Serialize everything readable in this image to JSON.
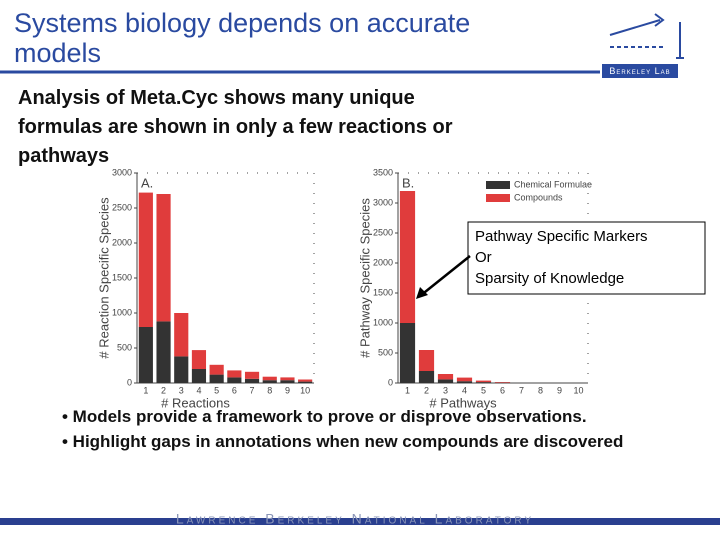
{
  "slide": {
    "title_lines": [
      "Systems biology depends on accurate",
      "models"
    ],
    "logo": "Berkeley Lab",
    "subtitle_lines": [
      "Analysis of Meta.Cyc shows many unique",
      "formulas are shown in only a few reactions or",
      "pathways"
    ],
    "callout_lines": [
      "Pathway Specific Markers",
      "Or",
      "Sparsity of Knowledge"
    ],
    "bullets": [
      "• Models provide a framework to prove or disprove observations.",
      "• Highlight gaps in annotations when new compounds are discovered"
    ],
    "footer": "Lawrence Berkeley National Laboratory"
  },
  "chart_data": [
    {
      "type": "stacked-bar",
      "title": "A.",
      "x_label": "# Reactions",
      "y_label": "# Reaction Specific Species",
      "categories": [
        "1",
        "2",
        "3",
        "4",
        "5",
        "6",
        "7",
        "8",
        "9",
        "10"
      ],
      "series": [
        {
          "color": "#333333",
          "values": [
            800,
            880,
            380,
            200,
            120,
            80,
            60,
            40,
            40,
            20
          ]
        },
        {
          "color": "#e03c3c",
          "values": [
            1920,
            1820,
            620,
            270,
            140,
            100,
            100,
            50,
            40,
            30
          ]
        }
      ],
      "ylim": [
        0,
        3000
      ],
      "yticks": [
        0,
        500,
        1000,
        1500,
        2000,
        2500,
        3000
      ]
    },
    {
      "type": "stacked-bar",
      "title": "B.",
      "x_label": "# Pathways",
      "y_label": "# Pathway Specific Species",
      "categories": [
        "1",
        "2",
        "3",
        "4",
        "5",
        "6",
        "7",
        "8",
        "9",
        "10"
      ],
      "series": [
        {
          "name": "Chemical Formulae",
          "color": "#333333",
          "values": [
            1000,
            200,
            60,
            30,
            15,
            5,
            0,
            0,
            0,
            0
          ]
        },
        {
          "name": "Compounds",
          "color": "#e03c3c",
          "values": [
            2200,
            350,
            90,
            60,
            25,
            10,
            0,
            0,
            0,
            0
          ]
        }
      ],
      "ylim": [
        0,
        3500
      ],
      "yticks": [
        0,
        500,
        1000,
        1500,
        2000,
        2500,
        3000,
        3500
      ],
      "legend": "upper-right"
    }
  ]
}
